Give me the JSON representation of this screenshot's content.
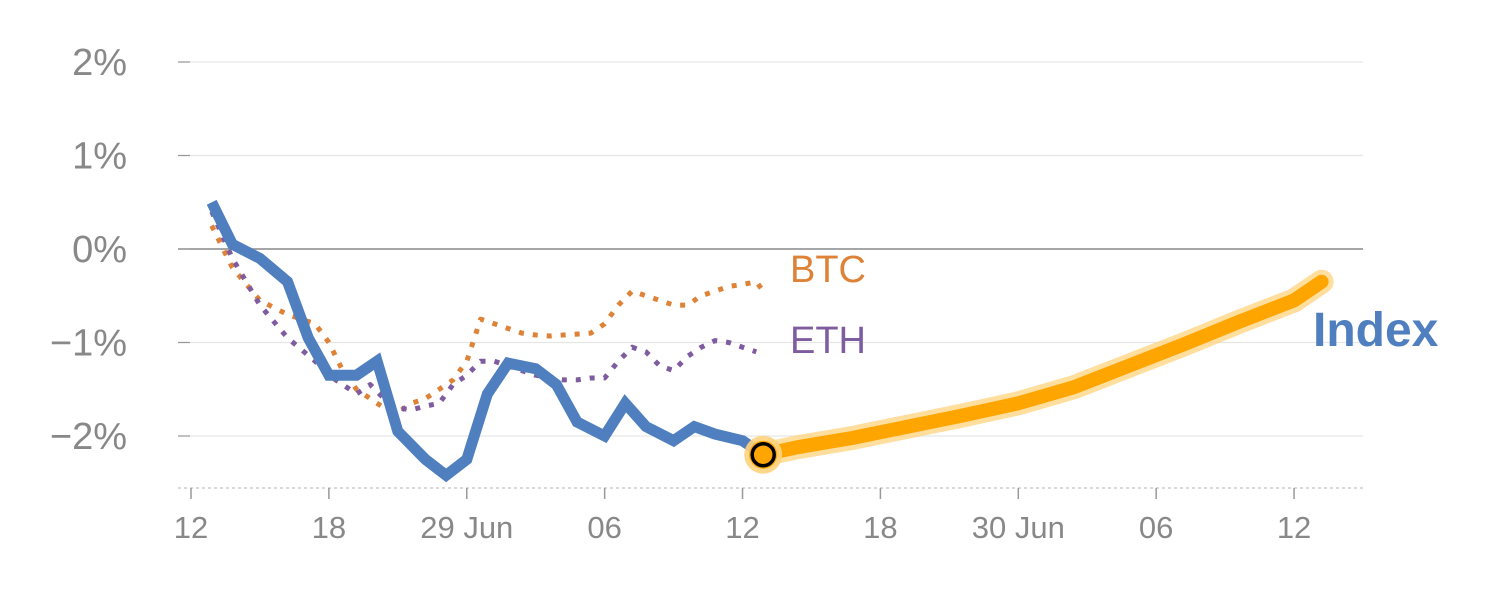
{
  "chart_data": {
    "type": "line",
    "ylim": [
      -2.5,
      2
    ],
    "yticks": [
      {
        "value": 2,
        "label": "2%"
      },
      {
        "value": 1,
        "label": "1%"
      },
      {
        "value": 0,
        "label": "0%"
      },
      {
        "value": -1,
        "label": "−1%"
      },
      {
        "value": -2,
        "label": "−2%"
      }
    ],
    "xlim": [
      0,
      85
    ],
    "xticks": [
      {
        "value": 0,
        "label": "12"
      },
      {
        "value": 10,
        "label": "18"
      },
      {
        "value": 20,
        "label": "29 Jun"
      },
      {
        "value": 30,
        "label": "06"
      },
      {
        "value": 40,
        "label": "12"
      },
      {
        "value": 50,
        "label": "18"
      },
      {
        "value": 60,
        "label": "30 Jun"
      },
      {
        "value": 70,
        "label": "06"
      },
      {
        "value": 80,
        "label": "12"
      }
    ],
    "grid": true,
    "colors": {
      "index": "#4f7fbf",
      "btc": "#dd8237",
      "eth": "#7f5c9f",
      "forecast": "#ffa500",
      "forecast_glow": "#ffd37d",
      "grid": "#e6e6e6",
      "zero_line": "#888888",
      "axis": "#cccccc",
      "tick_text": "#888888"
    },
    "series": [
      {
        "name": "BTC",
        "label": "BTC",
        "style": "dotted",
        "x": [
          1.5,
          3,
          5,
          7,
          9,
          10,
          11,
          12,
          13,
          14,
          15,
          16,
          17,
          18,
          19,
          20,
          21,
          22,
          23,
          24,
          25,
          26,
          27,
          28,
          29,
          30,
          31,
          32,
          33,
          34,
          35,
          36,
          37,
          38,
          39,
          40,
          41,
          41.5
        ],
        "values": [
          0.25,
          -0.2,
          -0.55,
          -0.7,
          -0.8,
          -1.0,
          -1.3,
          -1.5,
          -1.6,
          -1.7,
          -1.75,
          -1.65,
          -1.6,
          -1.5,
          -1.4,
          -1.2,
          -0.75,
          -0.8,
          -0.85,
          -0.9,
          -0.92,
          -0.93,
          -0.92,
          -0.91,
          -0.9,
          -0.8,
          -0.6,
          -0.45,
          -0.5,
          -0.55,
          -0.6,
          -0.6,
          -0.5,
          -0.45,
          -0.4,
          -0.38,
          -0.35,
          -0.45
        ]
      },
      {
        "name": "ETH",
        "label": "ETH",
        "style": "dotted",
        "x": [
          1.5,
          3,
          5,
          7,
          9,
          10,
          11,
          12,
          13,
          14,
          15,
          16,
          17,
          18,
          19,
          20,
          21,
          22,
          23,
          24,
          25,
          26,
          27,
          28,
          29,
          30,
          31,
          32,
          33,
          34,
          35,
          36,
          37,
          38,
          39,
          40,
          41
        ],
        "values": [
          0.4,
          -0.1,
          -0.6,
          -0.95,
          -1.2,
          -1.35,
          -1.45,
          -1.55,
          -1.45,
          -1.6,
          -1.7,
          -1.72,
          -1.68,
          -1.65,
          -1.45,
          -1.35,
          -1.2,
          -1.2,
          -1.25,
          -1.3,
          -1.35,
          -1.38,
          -1.4,
          -1.4,
          -1.38,
          -1.38,
          -1.2,
          -1.05,
          -1.1,
          -1.25,
          -1.3,
          -1.15,
          -1.05,
          -0.98,
          -1.0,
          -1.05,
          -1.1
        ]
      },
      {
        "name": "Index",
        "label": "Index",
        "style": "solid",
        "x": [
          1.5,
          3,
          5,
          7,
          8.5,
          10,
          12,
          13.5,
          15,
          17,
          18.5,
          20,
          21.5,
          23,
          25,
          26.5,
          28,
          30,
          31.5,
          33,
          35,
          36.5,
          38,
          40,
          41.5
        ],
        "values": [
          0.5,
          0.05,
          -0.1,
          -0.35,
          -0.95,
          -1.35,
          -1.35,
          -1.2,
          -1.95,
          -2.25,
          -2.42,
          -2.25,
          -1.55,
          -1.22,
          -1.28,
          -1.45,
          -1.85,
          -2.0,
          -1.65,
          -1.9,
          -2.05,
          -1.9,
          -1.98,
          -2.05,
          -2.2
        ]
      },
      {
        "name": "Index forecast",
        "style": "thick",
        "x": [
          41.5,
          44,
          48,
          52,
          56,
          60,
          64,
          68,
          72,
          76,
          80,
          82
        ],
        "values": [
          -2.2,
          -2.12,
          -2.02,
          -1.9,
          -1.78,
          -1.65,
          -1.48,
          -1.25,
          -1.02,
          -0.78,
          -0.55,
          -0.35
        ]
      }
    ],
    "marker": {
      "x": 41.5,
      "value": -2.2
    }
  }
}
